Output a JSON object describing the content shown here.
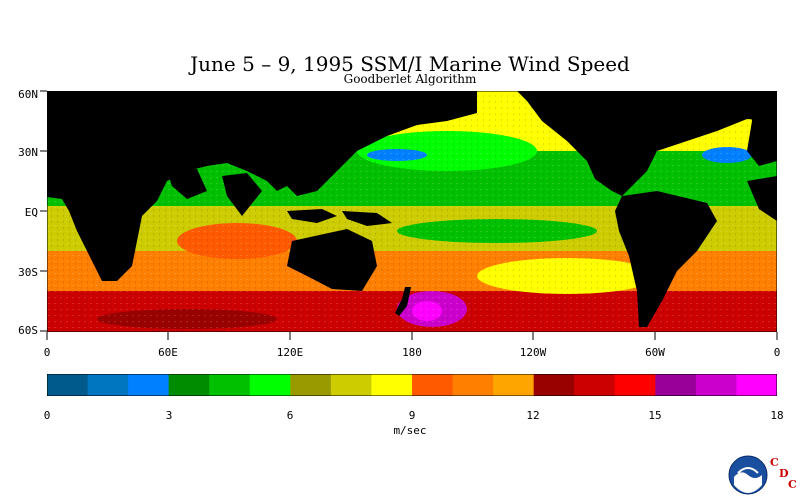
{
  "title": "June 5 – 9, 1995 SSM/I Marine Wind Speed",
  "subtitle": "Goodberlet Algorithm",
  "lat_labels": [
    "60N",
    "30N",
    "EQ",
    "30S",
    "60S"
  ],
  "lon_labels": [
    "0",
    "60E",
    "120E",
    "180",
    "120W",
    "60W",
    "0"
  ],
  "colorbar": {
    "units": "m/sec",
    "ticks": [
      "0",
      "3",
      "6",
      "9",
      "12",
      "15",
      "18"
    ],
    "colors": [
      "#005b8c",
      "#0075c0",
      "#0080ff",
      "#008c00",
      "#00c000",
      "#00ff00",
      "#999900",
      "#cccc00",
      "#ffff00",
      "#ff5a00",
      "#ff8000",
      "#ffa500",
      "#990000",
      "#cc0000",
      "#ff0000",
      "#990099",
      "#cc00cc",
      "#ff00ff"
    ]
  },
  "logo": {
    "name": "noaa-logo",
    "letters": [
      "C",
      "D",
      "C"
    ]
  }
}
